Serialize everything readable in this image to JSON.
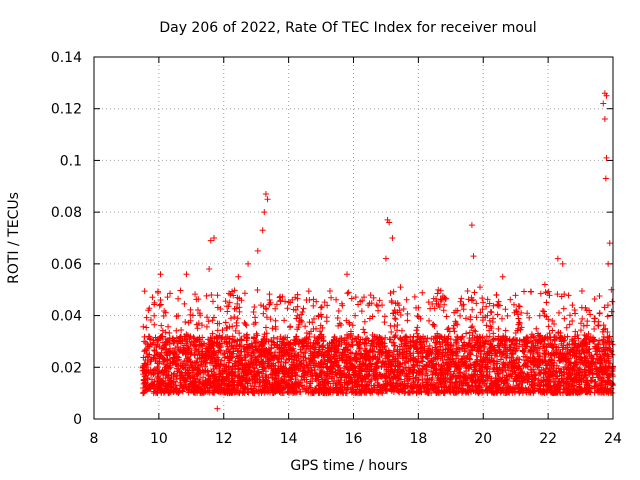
{
  "chart_data": {
    "type": "scatter",
    "title": "Day 206 of 2022, Rate Of TEC Index for receiver moul",
    "xlabel": "GPS time / hours",
    "ylabel": "ROTI / TECUs",
    "xlim": [
      8,
      24
    ],
    "ylim": [
      0,
      0.14
    ],
    "xticks": [
      "8",
      "10",
      "12",
      "14",
      "16",
      "18",
      "20",
      "22",
      "24"
    ],
    "yticks": [
      "0",
      "0.02",
      "0.04",
      "0.06",
      "0.08",
      "0.1",
      "0.12",
      "0.14"
    ],
    "grid": true,
    "marker": "plus",
    "color": "#ff0000",
    "series": [
      {
        "name": "ROTI",
        "x_start": 9.5,
        "x_end": 24.0,
        "typical_range": [
          0.007,
          0.035
        ],
        "peaks": [
          {
            "x": 10.05,
            "y": 0.056
          },
          {
            "x": 10.05,
            "y": 0.046
          },
          {
            "x": 10.85,
            "y": 0.056
          },
          {
            "x": 11.6,
            "y": 0.069
          },
          {
            "x": 11.7,
            "y": 0.07
          },
          {
            "x": 11.55,
            "y": 0.058
          },
          {
            "x": 11.8,
            "y": 0.004
          },
          {
            "x": 12.45,
            "y": 0.055
          },
          {
            "x": 12.75,
            "y": 0.06
          },
          {
            "x": 13.05,
            "y": 0.065
          },
          {
            "x": 13.2,
            "y": 0.073
          },
          {
            "x": 13.3,
            "y": 0.087
          },
          {
            "x": 13.35,
            "y": 0.085
          },
          {
            "x": 13.25,
            "y": 0.08
          },
          {
            "x": 14.05,
            "y": 0.045
          },
          {
            "x": 14.55,
            "y": 0.046
          },
          {
            "x": 15.8,
            "y": 0.056
          },
          {
            "x": 16.05,
            "y": 0.04
          },
          {
            "x": 17.0,
            "y": 0.062
          },
          {
            "x": 17.05,
            "y": 0.077
          },
          {
            "x": 17.1,
            "y": 0.076
          },
          {
            "x": 17.2,
            "y": 0.07
          },
          {
            "x": 17.45,
            "y": 0.051
          },
          {
            "x": 19.65,
            "y": 0.075
          },
          {
            "x": 19.7,
            "y": 0.063
          },
          {
            "x": 19.9,
            "y": 0.051
          },
          {
            "x": 20.6,
            "y": 0.055
          },
          {
            "x": 21.9,
            "y": 0.052
          },
          {
            "x": 22.3,
            "y": 0.062
          },
          {
            "x": 22.45,
            "y": 0.06
          },
          {
            "x": 23.1,
            "y": 0.036
          },
          {
            "x": 23.75,
            "y": 0.126
          },
          {
            "x": 23.8,
            "y": 0.125
          },
          {
            "x": 23.7,
            "y": 0.122
          },
          {
            "x": 23.75,
            "y": 0.116
          },
          {
            "x": 23.8,
            "y": 0.101
          },
          {
            "x": 23.78,
            "y": 0.093
          },
          {
            "x": 23.9,
            "y": 0.068
          },
          {
            "x": 23.85,
            "y": 0.06
          },
          {
            "x": 23.95,
            "y": 0.05
          }
        ]
      }
    ]
  }
}
